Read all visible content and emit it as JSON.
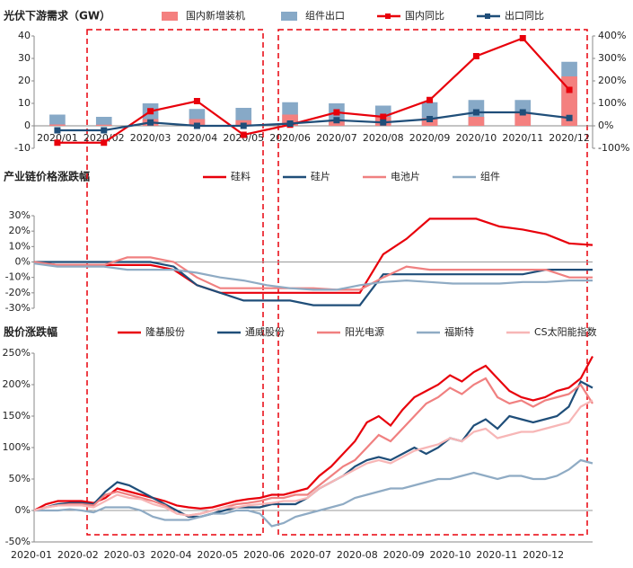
{
  "chart_data": [
    {
      "type": "bar-line",
      "title": "光伏下游需求（GW）",
      "categories": [
        "2020/01",
        "2020/02",
        "2020/03",
        "2020/04",
        "2020/05",
        "2020/06",
        "2020/07",
        "2020/08",
        "2020/09",
        "2020/10",
        "2020/11",
        "2020/12"
      ],
      "series": [
        {
          "name": "国内新增装机",
          "color": "#f4807f",
          "kind": "bar",
          "values": [
            0.6,
            0.5,
            3,
            3,
            2.5,
            5,
            2.5,
            4,
            3.5,
            4,
            6,
            22
          ]
        },
        {
          "name": "组件出口",
          "color": "#87a9c7",
          "kind": "bar",
          "values": [
            5,
            4,
            10,
            7.5,
            8,
            10.5,
            10,
            9,
            10.5,
            11.5,
            11.5,
            28.5
          ]
        },
        {
          "name": "国内同比",
          "color": "#e8000b",
          "kind": "line",
          "axis": "y2",
          "values": [
            -75,
            -75,
            65,
            110,
            -40,
            5,
            60,
            40,
            115,
            310,
            390,
            160
          ]
        },
        {
          "name": "出口同比",
          "color": "#1f4e79",
          "kind": "line",
          "axis": "y2",
          "values": [
            -20,
            -20,
            15,
            0,
            0,
            10,
            25,
            15,
            30,
            60,
            60,
            35
          ]
        }
      ],
      "ylim": [
        -10,
        40
      ],
      "yticks": [
        -10,
        0,
        10,
        20,
        30,
        40
      ],
      "y2lim": [
        -100,
        400
      ],
      "y2ticks": [
        {
          "value": -100,
          "label": "-100%"
        },
        {
          "value": 0,
          "label": "0%"
        },
        {
          "value": 100,
          "label": "100%"
        },
        {
          "value": 200,
          "label": "200%"
        },
        {
          "value": 300,
          "label": "300%"
        },
        {
          "value": 400,
          "label": "400%"
        }
      ]
    },
    {
      "type": "line",
      "title": "产业链价格涨跌幅",
      "series": [
        {
          "name": "硅料",
          "color": "#e8000b",
          "values": [
            0,
            -2,
            -2,
            -2,
            -2,
            -2,
            -5,
            -15,
            -20,
            -20,
            -20,
            -20,
            -20,
            -20,
            -20,
            5,
            15,
            28,
            28,
            28,
            23,
            21,
            18,
            12,
            11
          ]
        },
        {
          "name": "硅片",
          "color": "#1f4e79",
          "values": [
            0,
            0,
            0,
            0,
            0,
            0,
            -3,
            -15,
            -20,
            -25,
            -25,
            -25,
            -28,
            -28,
            -28,
            -8,
            -8,
            -8,
            -8,
            -8,
            -8,
            -8,
            -5,
            -5,
            -5
          ]
        },
        {
          "name": "电池片",
          "color": "#f08080",
          "values": [
            0,
            -2,
            -2,
            -2,
            3,
            3,
            0,
            -10,
            -17,
            -17,
            -17,
            -17,
            -17,
            -18,
            -18,
            -10,
            -3,
            -5,
            -5,
            -5,
            -5,
            -5,
            -5,
            -10,
            -10
          ]
        },
        {
          "name": "组件",
          "color": "#8fabc4",
          "values": [
            -1,
            -3,
            -3,
            -3,
            -5,
            -5,
            -5,
            -7,
            -10,
            -12,
            -15,
            -17,
            -18,
            -18,
            -15,
            -13,
            -12,
            -13,
            -14,
            -14,
            -14,
            -13,
            -13,
            -12,
            -12
          ]
        }
      ],
      "ylim": [
        -30,
        30
      ],
      "yticks": [
        {
          "value": -30,
          "label": "-30%"
        },
        {
          "value": -20,
          "label": "-20%"
        },
        {
          "value": -10,
          "label": "-10%"
        },
        {
          "value": 0,
          "label": "0%"
        },
        {
          "value": 10,
          "label": "10%"
        },
        {
          "value": 20,
          "label": "20%"
        },
        {
          "value": 30,
          "label": "30%"
        }
      ]
    },
    {
      "type": "line",
      "title": "股价涨跌幅",
      "xticks": [
        "2020-01",
        "2020-02",
        "2020-03",
        "2020-04",
        "2020-05",
        "2020-06",
        "2020-07",
        "2020-08",
        "2020-09",
        "2020-10",
        "2020-11",
        "2020-12"
      ],
      "series": [
        {
          "name": "隆基股份",
          "color": "#e8000b",
          "values": [
            0,
            10,
            15,
            15,
            15,
            12,
            20,
            35,
            30,
            25,
            20,
            15,
            8,
            5,
            3,
            5,
            10,
            15,
            18,
            20,
            25,
            25,
            30,
            35,
            55,
            70,
            90,
            110,
            140,
            150,
            135,
            160,
            180,
            190,
            200,
            215,
            205,
            220,
            230,
            210,
            190,
            180,
            175,
            180,
            190,
            195,
            210,
            245
          ]
        },
        {
          "name": "通威股份",
          "color": "#1f4e79",
          "values": [
            0,
            5,
            10,
            12,
            12,
            10,
            30,
            45,
            40,
            30,
            20,
            10,
            0,
            -10,
            -10,
            -5,
            0,
            5,
            5,
            5,
            10,
            10,
            10,
            20,
            35,
            45,
            55,
            70,
            80,
            85,
            80,
            90,
            100,
            90,
            100,
            115,
            110,
            135,
            145,
            130,
            150,
            145,
            140,
            145,
            150,
            165,
            205,
            195
          ]
        },
        {
          "name": "阳光电源",
          "color": "#f08080",
          "values": [
            0,
            5,
            8,
            10,
            10,
            8,
            25,
            30,
            25,
            20,
            15,
            8,
            -5,
            -8,
            -5,
            0,
            5,
            10,
            12,
            15,
            20,
            20,
            25,
            25,
            40,
            55,
            70,
            80,
            100,
            120,
            110,
            130,
            150,
            170,
            180,
            195,
            185,
            200,
            210,
            180,
            170,
            175,
            165,
            175,
            180,
            185,
            200,
            170
          ]
        },
        {
          "name": "福斯特",
          "color": "#8fabc4",
          "values": [
            0,
            0,
            0,
            2,
            0,
            -3,
            5,
            5,
            5,
            0,
            -10,
            -15,
            -15,
            -15,
            -10,
            -5,
            -5,
            0,
            0,
            -5,
            -25,
            -20,
            -10,
            -5,
            0,
            5,
            10,
            20,
            25,
            30,
            35,
            35,
            40,
            45,
            50,
            50,
            55,
            60,
            55,
            50,
            55,
            55,
            50,
            50,
            55,
            65,
            80,
            75
          ]
        },
        {
          "name": "CS太阳能指数",
          "color": "#f7b6b6",
          "values": [
            0,
            5,
            8,
            8,
            8,
            5,
            15,
            25,
            20,
            18,
            10,
            5,
            -5,
            -8,
            -5,
            0,
            5,
            5,
            8,
            10,
            12,
            15,
            15,
            20,
            35,
            45,
            55,
            65,
            75,
            80,
            75,
            85,
            95,
            100,
            105,
            115,
            110,
            125,
            130,
            115,
            120,
            125,
            125,
            130,
            135,
            140,
            165,
            175
          ]
        }
      ],
      "ylim": [
        -50,
        250
      ],
      "yticks": [
        {
          "value": -50,
          "label": "-50%"
        },
        {
          "value": 0,
          "label": "0%"
        },
        {
          "value": 50,
          "label": "50%"
        },
        {
          "value": 100,
          "label": "100%"
        },
        {
          "value": 150,
          "label": "150%"
        },
        {
          "value": 200,
          "label": "200%"
        },
        {
          "value": 250,
          "label": "250%"
        }
      ]
    }
  ]
}
